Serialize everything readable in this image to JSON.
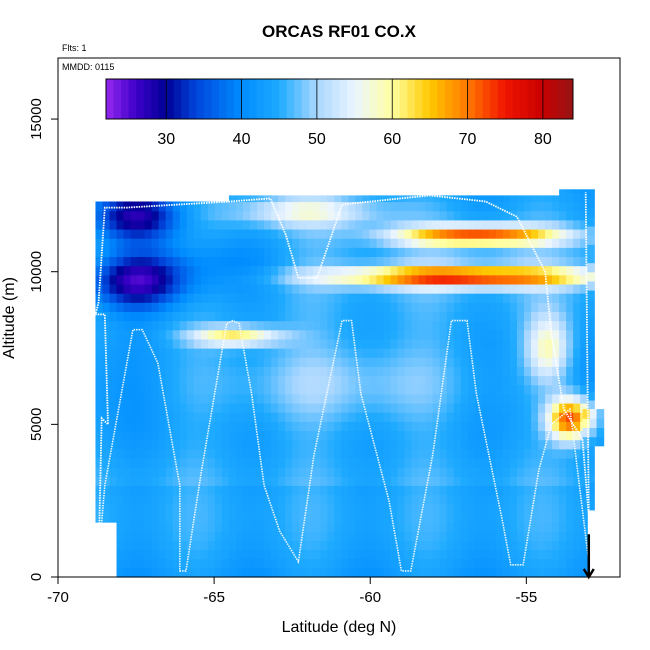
{
  "chart_data": {
    "type": "heatmap",
    "title": "ORCAS RF01 CO.X",
    "annotations": [
      "Flts: 1",
      "MMDD: 0115"
    ],
    "xlabel": "Latitude (deg N)",
    "ylabel": "Altitude (m)",
    "xlim": [
      -70,
      -52
    ],
    "ylim": [
      0,
      17000
    ],
    "x_ticks": [
      -70,
      -65,
      -60,
      -55
    ],
    "x_tick_labels": [
      "-70",
      "-65",
      "-60",
      "-55"
    ],
    "y_ticks": [
      0,
      5000,
      10000,
      15000
    ],
    "y_tick_labels": [
      "0",
      "5000",
      "10000",
      "15000"
    ],
    "colorbar": {
      "range": [
        22,
        84
      ],
      "ticks": [
        30,
        40,
        50,
        60,
        70,
        80
      ],
      "tick_labels": [
        "30",
        "40",
        "50",
        "60",
        "70",
        "80"
      ],
      "placement": "top-inside"
    },
    "grid": false,
    "features": [
      {
        "name": "background",
        "value": 45
      },
      {
        "name": "upper-tropospheric plume",
        "lat": [
          -62,
          -54
        ],
        "alt": [
          9500,
          10300
        ],
        "value": 75
      },
      {
        "name": "upper plume",
        "lat": [
          -58,
          -54
        ],
        "alt": [
          11000,
          11500
        ],
        "value": 76
      },
      {
        "name": "mid plume",
        "lat": [
          -65.5,
          -63
        ],
        "alt": [
          7600,
          8200
        ],
        "value": 63
      },
      {
        "name": "low-latitude-edge plume",
        "lat": [
          -54,
          -53
        ],
        "alt": [
          4500,
          6000
        ],
        "value": 75
      },
      {
        "name": "high-latitude upper low",
        "lat": [
          -68.5,
          -66
        ],
        "alt": [
          9000,
          11000
        ],
        "value": 30
      }
    ],
    "marker": {
      "name": "arrow",
      "lat": -53,
      "alt": 600
    }
  }
}
